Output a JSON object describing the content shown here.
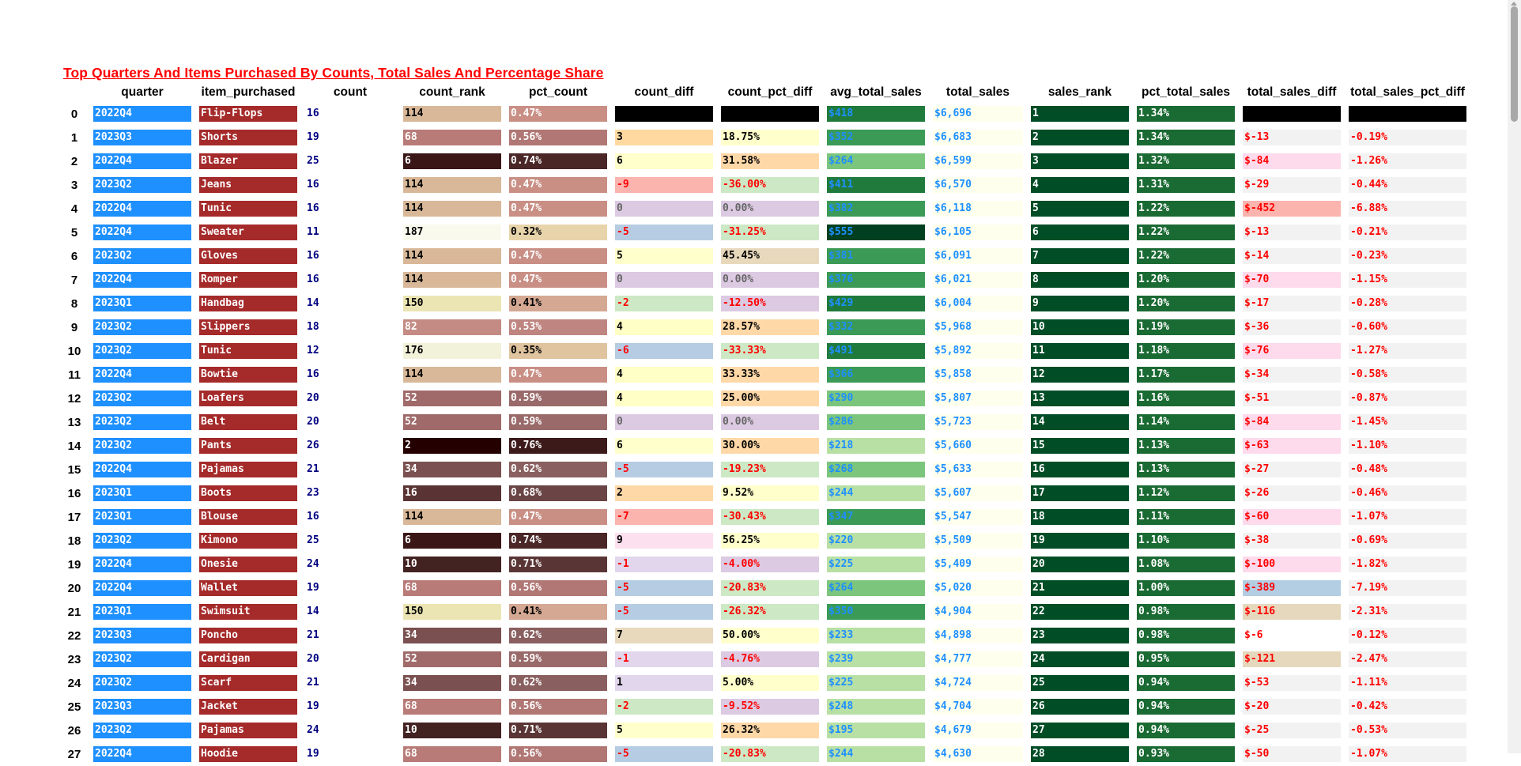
{
  "caption": "Top Quarters And Items Purchased By Counts, Total Sales And Percentage Share",
  "columns": [
    "",
    "quarter",
    "item_purchased",
    "count",
    "count_rank",
    "pct_count",
    "count_diff",
    "count_pct_diff",
    "avg_total_sales",
    "total_sales",
    "sales_rank",
    "pct_total_sales",
    "total_sales_diff",
    "total_sales_pct_diff"
  ],
  "rows": [
    [
      "0",
      "2022Q4",
      "Flip-Flops",
      "16",
      "114",
      "0.47%",
      "",
      "",
      "$418",
      "$6,696",
      "1",
      "1.34%",
      "",
      ""
    ],
    [
      "1",
      "2023Q3",
      "Shorts",
      "19",
      "68",
      "0.56%",
      "3",
      "18.75%",
      "$352",
      "$6,683",
      "2",
      "1.34%",
      "$-13",
      "-0.19%"
    ],
    [
      "2",
      "2022Q4",
      "Blazer",
      "25",
      "6",
      "0.74%",
      "6",
      "31.58%",
      "$264",
      "$6,599",
      "3",
      "1.32%",
      "$-84",
      "-1.26%"
    ],
    [
      "3",
      "2023Q2",
      "Jeans",
      "16",
      "114",
      "0.47%",
      "-9",
      "-36.00%",
      "$411",
      "$6,570",
      "4",
      "1.31%",
      "$-29",
      "-0.44%"
    ],
    [
      "4",
      "2022Q4",
      "Tunic",
      "16",
      "114",
      "0.47%",
      "0",
      "0.00%",
      "$382",
      "$6,118",
      "5",
      "1.22%",
      "$-452",
      "-6.88%"
    ],
    [
      "5",
      "2022Q4",
      "Sweater",
      "11",
      "187",
      "0.32%",
      "-5",
      "-31.25%",
      "$555",
      "$6,105",
      "6",
      "1.22%",
      "$-13",
      "-0.21%"
    ],
    [
      "6",
      "2023Q2",
      "Gloves",
      "16",
      "114",
      "0.47%",
      "5",
      "45.45%",
      "$381",
      "$6,091",
      "7",
      "1.22%",
      "$-14",
      "-0.23%"
    ],
    [
      "7",
      "2022Q4",
      "Romper",
      "16",
      "114",
      "0.47%",
      "0",
      "0.00%",
      "$376",
      "$6,021",
      "8",
      "1.20%",
      "$-70",
      "-1.15%"
    ],
    [
      "8",
      "2023Q1",
      "Handbag",
      "14",
      "150",
      "0.41%",
      "-2",
      "-12.50%",
      "$429",
      "$6,004",
      "9",
      "1.20%",
      "$-17",
      "-0.28%"
    ],
    [
      "9",
      "2023Q2",
      "Slippers",
      "18",
      "82",
      "0.53%",
      "4",
      "28.57%",
      "$332",
      "$5,968",
      "10",
      "1.19%",
      "$-36",
      "-0.60%"
    ],
    [
      "10",
      "2023Q2",
      "Tunic",
      "12",
      "176",
      "0.35%",
      "-6",
      "-33.33%",
      "$491",
      "$5,892",
      "11",
      "1.18%",
      "$-76",
      "-1.27%"
    ],
    [
      "11",
      "2022Q4",
      "Bowtie",
      "16",
      "114",
      "0.47%",
      "4",
      "33.33%",
      "$366",
      "$5,858",
      "12",
      "1.17%",
      "$-34",
      "-0.58%"
    ],
    [
      "12",
      "2023Q2",
      "Loafers",
      "20",
      "52",
      "0.59%",
      "4",
      "25.00%",
      "$290",
      "$5,807",
      "13",
      "1.16%",
      "$-51",
      "-0.87%"
    ],
    [
      "13",
      "2023Q2",
      "Belt",
      "20",
      "52",
      "0.59%",
      "0",
      "0.00%",
      "$286",
      "$5,723",
      "14",
      "1.14%",
      "$-84",
      "-1.45%"
    ],
    [
      "14",
      "2023Q2",
      "Pants",
      "26",
      "2",
      "0.76%",
      "6",
      "30.00%",
      "$218",
      "$5,660",
      "15",
      "1.13%",
      "$-63",
      "-1.10%"
    ],
    [
      "15",
      "2022Q4",
      "Pajamas",
      "21",
      "34",
      "0.62%",
      "-5",
      "-19.23%",
      "$268",
      "$5,633",
      "16",
      "1.13%",
      "$-27",
      "-0.48%"
    ],
    [
      "16",
      "2023Q1",
      "Boots",
      "23",
      "16",
      "0.68%",
      "2",
      "9.52%",
      "$244",
      "$5,607",
      "17",
      "1.12%",
      "$-26",
      "-0.46%"
    ],
    [
      "17",
      "2023Q1",
      "Blouse",
      "16",
      "114",
      "0.47%",
      "-7",
      "-30.43%",
      "$347",
      "$5,547",
      "18",
      "1.11%",
      "$-60",
      "-1.07%"
    ],
    [
      "18",
      "2023Q2",
      "Kimono",
      "25",
      "6",
      "0.74%",
      "9",
      "56.25%",
      "$220",
      "$5,509",
      "19",
      "1.10%",
      "$-38",
      "-0.69%"
    ],
    [
      "19",
      "2022Q4",
      "Onesie",
      "24",
      "10",
      "0.71%",
      "-1",
      "-4.00%",
      "$225",
      "$5,409",
      "20",
      "1.08%",
      "$-100",
      "-1.82%"
    ],
    [
      "20",
      "2022Q4",
      "Wallet",
      "19",
      "68",
      "0.56%",
      "-5",
      "-20.83%",
      "$264",
      "$5,020",
      "21",
      "1.00%",
      "$-389",
      "-7.19%"
    ],
    [
      "21",
      "2023Q1",
      "Swimsuit",
      "14",
      "150",
      "0.41%",
      "-5",
      "-26.32%",
      "$350",
      "$4,904",
      "22",
      "0.98%",
      "$-116",
      "-2.31%"
    ],
    [
      "22",
      "2023Q3",
      "Poncho",
      "21",
      "34",
      "0.62%",
      "7",
      "50.00%",
      "$233",
      "$4,898",
      "23",
      "0.98%",
      "$-6",
      "-0.12%"
    ],
    [
      "23",
      "2023Q2",
      "Cardigan",
      "20",
      "52",
      "0.59%",
      "-1",
      "-4.76%",
      "$239",
      "$4,777",
      "24",
      "0.95%",
      "$-121",
      "-2.47%"
    ],
    [
      "24",
      "2023Q2",
      "Scarf",
      "21",
      "34",
      "0.62%",
      "1",
      "5.00%",
      "$225",
      "$4,724",
      "25",
      "0.94%",
      "$-53",
      "-1.11%"
    ],
    [
      "25",
      "2023Q3",
      "Jacket",
      "19",
      "68",
      "0.56%",
      "-2",
      "-9.52%",
      "$248",
      "$4,704",
      "26",
      "0.94%",
      "$-20",
      "-0.42%"
    ],
    [
      "26",
      "2023Q2",
      "Pajamas",
      "24",
      "10",
      "0.71%",
      "5",
      "26.32%",
      "$195",
      "$4,679",
      "27",
      "0.94%",
      "$-25",
      "-0.53%"
    ],
    [
      "27",
      "2022Q4",
      "Hoodie",
      "19",
      "68",
      "0.56%",
      "-5",
      "-20.83%",
      "$244",
      "$4,630",
      "28",
      "0.93%",
      "$-50",
      "-1.07%"
    ]
  ],
  "styles": {
    "quarter": {
      "bg": "#1e90ff",
      "fg": "#ffffff"
    },
    "item": {
      "bg": "#a52a2a",
      "fg": "#ffffff"
    },
    "count_rank": {
      "2": [
        "#240000",
        "#ffffff"
      ],
      "6": [
        "#3a1616",
        "#ffffff"
      ],
      "10": [
        "#432222",
        "#ffffff"
      ],
      "16": [
        "#5a3434",
        "#ffffff"
      ],
      "34": [
        "#7b5050",
        "#ffffff"
      ],
      "52": [
        "#a06a6a",
        "#ffffff"
      ],
      "68": [
        "#b87b78",
        "#ffffff"
      ],
      "82": [
        "#c48b84",
        "#ffffff"
      ],
      "114": [
        "#d8b898",
        "#000000"
      ],
      "150": [
        "#ebe5b3",
        "#000000"
      ],
      "176": [
        "#f2f1d9",
        "#000000"
      ],
      "187": [
        "#f9f9ee",
        "#000000"
      ]
    },
    "pct_count": {
      "0.76%": [
        "#3d1a1a",
        "#ffffff"
      ],
      "0.74%": [
        "#4a2626",
        "#ffffff"
      ],
      "0.71%": [
        "#5a3535",
        "#ffffff"
      ],
      "0.68%": [
        "#6b4545",
        "#ffffff"
      ],
      "0.62%": [
        "#8a5f5f",
        "#ffffff"
      ],
      "0.59%": [
        "#9a6a6a",
        "#ffffff"
      ],
      "0.56%": [
        "#b07774",
        "#ffffff"
      ],
      "0.53%": [
        "#bf8580",
        "#ffffff"
      ],
      "0.47%": [
        "#c98f85",
        "#ffffff"
      ],
      "0.41%": [
        "#d4a892",
        "#000000"
      ],
      "0.35%": [
        "#e0c49f",
        "#000000"
      ],
      "0.32%": [
        "#e8d4aa",
        "#000000"
      ]
    },
    "count_diff_pos": {
      "1": "#e1d6ec",
      "2": "#ffd8a8",
      "3": "#ffd9a0",
      "4": "#ffffc6",
      "5": "#ffffcc",
      "6": "#ffffcc",
      "7": "#e8d9bd",
      "9": "#fde0ef"
    },
    "count_diff_zero": "#dcc9e2",
    "count_diff_neg": {
      "-1": "#e1d6ec",
      "-2": "#cde8c4",
      "-5": "#b6cce3",
      "-6": "#b6cce3",
      "-7": "#fbb4ae",
      "-9": "#fbb4ae"
    },
    "count_pct_pos": "#ffd8a8",
    "count_pct_neg": "#cde8c4",
    "avg_sales_scale": [
      "#b8e0a4",
      "#7cc57c",
      "#3a9a56",
      "#1f7a3c",
      "#003f1f"
    ],
    "sales_rank_bg": "#004d26",
    "pct_total_bg": "#1a6a33",
    "total_sales_bg": "#ffffee",
    "total_sales_fg": "#1e90ff"
  }
}
